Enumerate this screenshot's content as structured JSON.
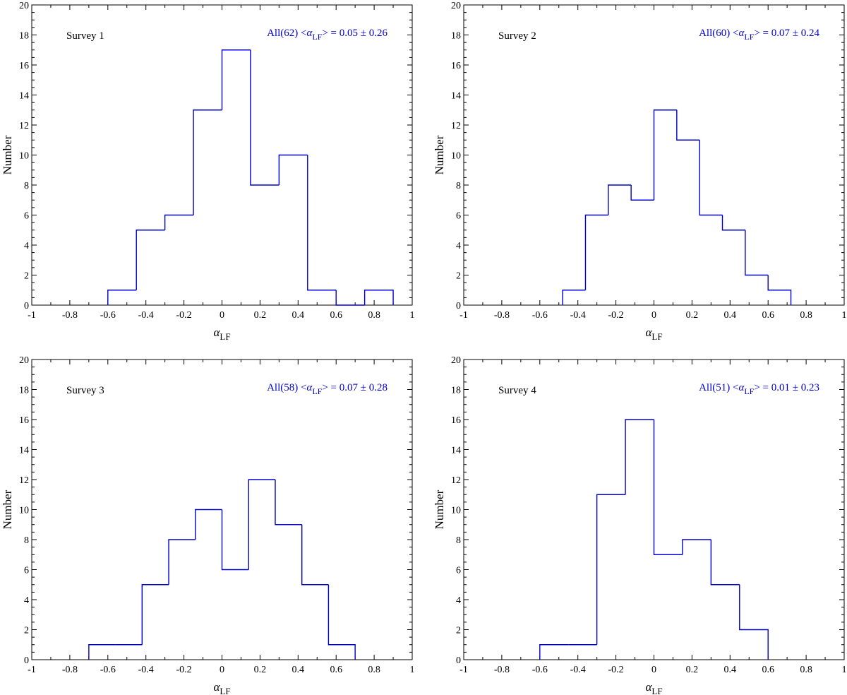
{
  "colors": {
    "histogram": "#0000cc",
    "annotation": "#0000cc",
    "axes": "#000000"
  },
  "chart_data": [
    {
      "type": "histogram",
      "panel_label": "Survey 1",
      "annotation": {
        "prefix": "All(62) <",
        "symbol": "α",
        "subscript": "LF",
        "suffix": "> = 0.05 ± 0.26"
      },
      "xlabel": {
        "symbol": "α",
        "subscript": "LF"
      },
      "ylabel": "Number",
      "xlim": [
        -1,
        1
      ],
      "ylim": [
        0,
        20
      ],
      "xticks": [
        "-1",
        "-0.8",
        "-0.6",
        "-0.4",
        "-0.2",
        "0",
        "0.2",
        "0.4",
        "0.6",
        "0.8",
        "1"
      ],
      "yticks": [
        "0",
        "2",
        "4",
        "6",
        "8",
        "10",
        "12",
        "14",
        "16",
        "18",
        "20"
      ],
      "grid": false,
      "bin_edges": [
        -0.6,
        -0.45,
        -0.3,
        -0.15,
        0,
        0.15,
        0.3,
        0.45,
        0.6,
        0.75,
        0.9
      ],
      "counts": [
        1,
        5,
        6,
        13,
        17,
        8,
        10,
        1,
        0,
        1
      ]
    },
    {
      "type": "histogram",
      "panel_label": "Survey 2",
      "annotation": {
        "prefix": "All(60) <",
        "symbol": "α",
        "subscript": "LF",
        "suffix": "> = 0.07 ± 0.24"
      },
      "xlabel": {
        "symbol": "α",
        "subscript": "LF"
      },
      "ylabel": "Number",
      "xlim": [
        -1,
        1
      ],
      "ylim": [
        0,
        20
      ],
      "xticks": [
        "-1",
        "-0.8",
        "-0.6",
        "-0.4",
        "-0.2",
        "0",
        "0.2",
        "0.4",
        "0.6",
        "0.8",
        "1"
      ],
      "yticks": [
        "0",
        "2",
        "4",
        "6",
        "8",
        "10",
        "12",
        "14",
        "16",
        "18",
        "20"
      ],
      "grid": false,
      "bin_edges": [
        -0.48,
        -0.36,
        -0.24,
        -0.12,
        0,
        0.12,
        0.24,
        0.36,
        0.48,
        0.6,
        0.72
      ],
      "counts": [
        1,
        6,
        8,
        7,
        13,
        11,
        6,
        5,
        2,
        1
      ]
    },
    {
      "type": "histogram",
      "panel_label": "Survey 3",
      "annotation": {
        "prefix": "All(58) <",
        "symbol": "α",
        "subscript": "LF",
        "suffix": "> = 0.07 ± 0.28"
      },
      "xlabel": {
        "symbol": "α",
        "subscript": "LF"
      },
      "ylabel": "Number",
      "xlim": [
        -1,
        1
      ],
      "ylim": [
        0,
        20
      ],
      "xticks": [
        "-1",
        "-0.8",
        "-0.6",
        "-0.4",
        "-0.2",
        "0",
        "0.2",
        "0.4",
        "0.6",
        "0.8",
        "1"
      ],
      "yticks": [
        "0",
        "2",
        "4",
        "6",
        "8",
        "10",
        "12",
        "14",
        "16",
        "18",
        "20"
      ],
      "grid": false,
      "bin_edges": [
        -0.7,
        -0.56,
        -0.42,
        -0.28,
        -0.14,
        0,
        0.14,
        0.28,
        0.42,
        0.56,
        0.7
      ],
      "counts": [
        1,
        1,
        5,
        8,
        10,
        6,
        12,
        9,
        5,
        1
      ]
    },
    {
      "type": "histogram",
      "panel_label": "Survey 4",
      "annotation": {
        "prefix": "All(51) <",
        "symbol": "α",
        "subscript": "LF",
        "suffix": "> = 0.01 ± 0.23"
      },
      "xlabel": {
        "symbol": "α",
        "subscript": "LF"
      },
      "ylabel": "Number",
      "xlim": [
        -1,
        1
      ],
      "ylim": [
        0,
        20
      ],
      "xticks": [
        "-1",
        "-0.8",
        "-0.6",
        "-0.4",
        "-0.2",
        "0",
        "0.2",
        "0.4",
        "0.6",
        "0.8",
        "1"
      ],
      "yticks": [
        "0",
        "2",
        "4",
        "6",
        "8",
        "10",
        "12",
        "14",
        "16",
        "18",
        "20"
      ],
      "grid": false,
      "bin_edges": [
        -0.6,
        -0.45,
        -0.3,
        -0.15,
        0,
        0.15,
        0.3,
        0.45,
        0.6
      ],
      "counts": [
        1,
        1,
        11,
        16,
        7,
        8,
        5,
        2
      ]
    }
  ]
}
